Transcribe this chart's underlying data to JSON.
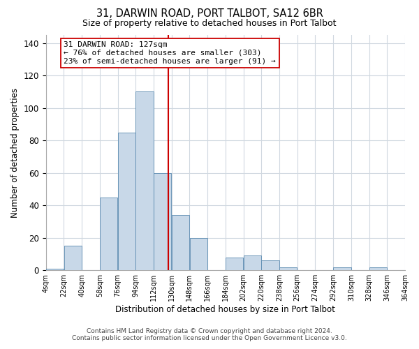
{
  "title": "31, DARWIN ROAD, PORT TALBOT, SA12 6BR",
  "subtitle": "Size of property relative to detached houses in Port Talbot",
  "xlabel": "Distribution of detached houses by size in Port Talbot",
  "ylabel": "Number of detached properties",
  "bar_color": "#c8d8e8",
  "bar_edge_color": "#5a8ab0",
  "bg_color": "#ffffff",
  "grid_color": "#d0d8e0",
  "vline_x": 127,
  "vline_color": "#cc0000",
  "annotation_title": "31 DARWIN ROAD: 127sqm",
  "annotation_line1": "← 76% of detached houses are smaller (303)",
  "annotation_line2": "23% of semi-detached houses are larger (91) →",
  "bin_edges": [
    4,
    22,
    40,
    58,
    76,
    94,
    112,
    130,
    148,
    166,
    184,
    202,
    220,
    238,
    256,
    274,
    292,
    310,
    328,
    346,
    364
  ],
  "bin_labels": [
    "4sqm",
    "22sqm",
    "40sqm",
    "58sqm",
    "76sqm",
    "94sqm",
    "112sqm",
    "130sqm",
    "148sqm",
    "166sqm",
    "184sqm",
    "202sqm",
    "220sqm",
    "238sqm",
    "256sqm",
    "274sqm",
    "292sqm",
    "310sqm",
    "328sqm",
    "346sqm",
    "364sqm"
  ],
  "counts": [
    1,
    15,
    0,
    45,
    85,
    110,
    60,
    34,
    20,
    0,
    8,
    9,
    6,
    2,
    0,
    0,
    2,
    0,
    2,
    0
  ],
  "ylim": [
    0,
    145
  ],
  "yticks": [
    0,
    20,
    40,
    60,
    80,
    100,
    120,
    140
  ],
  "footer1": "Contains HM Land Registry data © Crown copyright and database right 2024.",
  "footer2": "Contains public sector information licensed under the Open Government Licence v3.0."
}
